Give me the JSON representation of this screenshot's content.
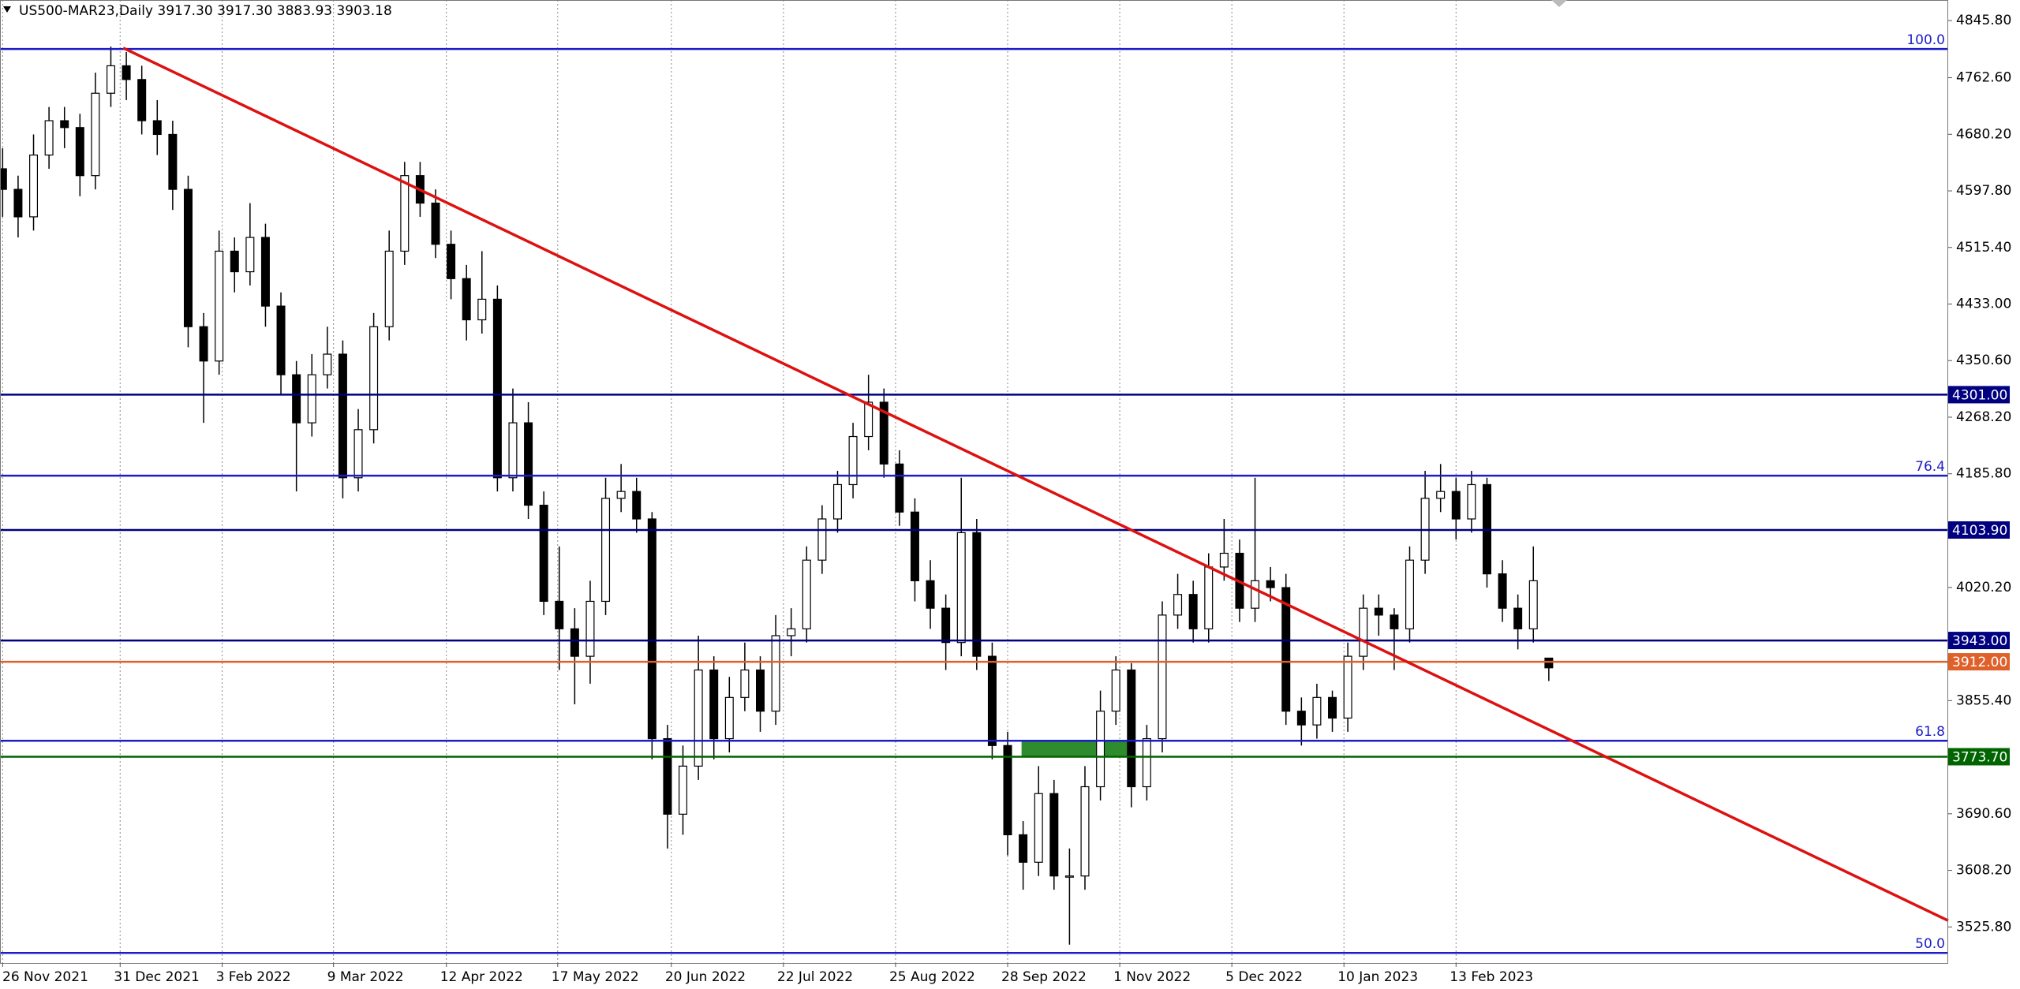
{
  "chart_data": {
    "type": "candlestick",
    "title": "US500-MAR23,Daily  3917.30 3917.30 3883.93 3903.18",
    "candles": [
      [
        4630,
        4660,
        4560,
        4600
      ],
      [
        4600,
        4620,
        4530,
        4560
      ],
      [
        4560,
        4680,
        4540,
        4650
      ],
      [
        4650,
        4720,
        4630,
        4700
      ],
      [
        4700,
        4720,
        4660,
        4690
      ],
      [
        4690,
        4710,
        4590,
        4620
      ],
      [
        4620,
        4770,
        4600,
        4740
      ],
      [
        4740,
        4808,
        4720,
        4780
      ],
      [
        4780,
        4800,
        4730,
        4760
      ],
      [
        4760,
        4780,
        4680,
        4700
      ],
      [
        4700,
        4730,
        4650,
        4680
      ],
      [
        4680,
        4700,
        4570,
        4600
      ],
      [
        4600,
        4620,
        4370,
        4400
      ],
      [
        4400,
        4420,
        4260,
        4350
      ],
      [
        4350,
        4540,
        4330,
        4510
      ],
      [
        4510,
        4530,
        4450,
        4480
      ],
      [
        4480,
        4580,
        4460,
        4530
      ],
      [
        4530,
        4550,
        4400,
        4430
      ],
      [
        4430,
        4450,
        4300,
        4330
      ],
      [
        4330,
        4350,
        4160,
        4260
      ],
      [
        4260,
        4360,
        4240,
        4330
      ],
      [
        4330,
        4400,
        4310,
        4360
      ],
      [
        4360,
        4380,
        4150,
        4180
      ],
      [
        4180,
        4280,
        4160,
        4250
      ],
      [
        4250,
        4420,
        4230,
        4400
      ],
      [
        4400,
        4540,
        4380,
        4510
      ],
      [
        4510,
        4640,
        4490,
        4620
      ],
      [
        4620,
        4640,
        4560,
        4580
      ],
      [
        4580,
        4600,
        4500,
        4520
      ],
      [
        4520,
        4540,
        4440,
        4470
      ],
      [
        4470,
        4490,
        4380,
        4410
      ],
      [
        4410,
        4510,
        4390,
        4440
      ],
      [
        4440,
        4460,
        4160,
        4180
      ],
      [
        4180,
        4310,
        4160,
        4260
      ],
      [
        4260,
        4290,
        4120,
        4140
      ],
      [
        4140,
        4160,
        3980,
        4000
      ],
      [
        4000,
        4080,
        3900,
        3960
      ],
      [
        3960,
        3990,
        3850,
        3920
      ],
      [
        3920,
        4030,
        3880,
        4000
      ],
      [
        4000,
        4180,
        3980,
        4150
      ],
      [
        4150,
        4200,
        4130,
        4160
      ],
      [
        4160,
        4180,
        4100,
        4120
      ],
      [
        4120,
        4130,
        3770,
        3800
      ],
      [
        3800,
        3820,
        3640,
        3690
      ],
      [
        3690,
        3790,
        3660,
        3760
      ],
      [
        3760,
        3950,
        3740,
        3900
      ],
      [
        3900,
        3920,
        3770,
        3800
      ],
      [
        3800,
        3890,
        3780,
        3860
      ],
      [
        3860,
        3940,
        3840,
        3900
      ],
      [
        3900,
        3920,
        3810,
        3840
      ],
      [
        3840,
        3980,
        3820,
        3950
      ],
      [
        3950,
        3990,
        3920,
        3960
      ],
      [
        3960,
        4080,
        3940,
        4060
      ],
      [
        4060,
        4140,
        4040,
        4120
      ],
      [
        4120,
        4190,
        4100,
        4170
      ],
      [
        4170,
        4260,
        4150,
        4240
      ],
      [
        4240,
        4330,
        4220,
        4290
      ],
      [
        4290,
        4310,
        4180,
        4200
      ],
      [
        4200,
        4220,
        4110,
        4130
      ],
      [
        4130,
        4150,
        4000,
        4030
      ],
      [
        4030,
        4060,
        3960,
        3990
      ],
      [
        3990,
        4010,
        3900,
        3940
      ],
      [
        3940,
        4180,
        3920,
        4100
      ],
      [
        4100,
        4120,
        3900,
        3920
      ],
      [
        3920,
        3940,
        3770,
        3790
      ],
      [
        3790,
        3810,
        3630,
        3660
      ],
      [
        3660,
        3680,
        3580,
        3620
      ],
      [
        3620,
        3760,
        3600,
        3720
      ],
      [
        3720,
        3740,
        3580,
        3600
      ],
      [
        3600,
        3640,
        3500,
        3600
      ],
      [
        3600,
        3760,
        3580,
        3730
      ],
      [
        3730,
        3870,
        3710,
        3840
      ],
      [
        3840,
        3920,
        3820,
        3900
      ],
      [
        3900,
        3910,
        3700,
        3730
      ],
      [
        3730,
        3820,
        3710,
        3800
      ],
      [
        3800,
        4000,
        3780,
        3980
      ],
      [
        3980,
        4040,
        3960,
        4010
      ],
      [
        4010,
        4030,
        3940,
        3960
      ],
      [
        3960,
        4070,
        3940,
        4050
      ],
      [
        4050,
        4120,
        4030,
        4070
      ],
      [
        4070,
        4090,
        3970,
        3990
      ],
      [
        3990,
        4180,
        3970,
        4030
      ],
      [
        4030,
        4050,
        4000,
        4020
      ],
      [
        4020,
        4040,
        3820,
        3840
      ],
      [
        3840,
        3860,
        3790,
        3820
      ],
      [
        3820,
        3880,
        3800,
        3860
      ],
      [
        3860,
        3870,
        3810,
        3830
      ],
      [
        3830,
        3940,
        3810,
        3920
      ],
      [
        3920,
        4010,
        3900,
        3990
      ],
      [
        3990,
        4010,
        3950,
        3980
      ],
      [
        3980,
        3990,
        3900,
        3960
      ],
      [
        3960,
        4080,
        3940,
        4060
      ],
      [
        4060,
        4190,
        4040,
        4150
      ],
      [
        4150,
        4200,
        4130,
        4160
      ],
      [
        4160,
        4180,
        4090,
        4120
      ],
      [
        4120,
        4190,
        4100,
        4170
      ],
      [
        4170,
        4180,
        4020,
        4040
      ],
      [
        4040,
        4060,
        3970,
        3990
      ],
      [
        3990,
        4010,
        3930,
        3960
      ],
      [
        3960,
        4080,
        3940,
        4030
      ],
      [
        3917.3,
        3917.3,
        3883.93,
        3903.18
      ]
    ],
    "xlim": [
      -0.17,
      125.83
    ],
    "xticks": [
      {
        "value": 0,
        "label": "26 Nov 2021"
      },
      {
        "value": 7.6,
        "label": "31 Dec 2021"
      },
      {
        "value": 14.2,
        "label": "3 Feb 2022"
      },
      {
        "value": 21.4,
        "label": "9 Mar 2022"
      },
      {
        "value": 28.7,
        "label": "12 Apr 2022"
      },
      {
        "value": 35.9,
        "label": "17 May 2022"
      },
      {
        "value": 43.25,
        "label": "20 Jun 2022"
      },
      {
        "value": 50.5,
        "label": "22 Jul 2022"
      },
      {
        "value": 57.75,
        "label": "25 Aug 2022"
      },
      {
        "value": 65,
        "label": "28 Sep 2022"
      },
      {
        "value": 72.25,
        "label": "1 Nov 2022"
      },
      {
        "value": 79.5,
        "label": "5 Dec 2022"
      },
      {
        "value": 86.75,
        "label": "10 Jan 2023"
      },
      {
        "value": 94,
        "label": "13 Feb 2023"
      }
    ],
    "ylim": [
      3473.3,
      4875.8
    ],
    "yticks": [
      {
        "value": 4845.8,
        "label": "4845.80"
      },
      {
        "value": 4762.6,
        "label": "4762.60"
      },
      {
        "value": 4680.2,
        "label": "4680.20"
      },
      {
        "value": 4597.8,
        "label": "4597.80"
      },
      {
        "value": 4515.4,
        "label": "4515.40"
      },
      {
        "value": 4433,
        "label": "4433.00"
      },
      {
        "value": 4350.6,
        "label": "4350.60"
      },
      {
        "value": 4268.2,
        "label": "4268.20"
      },
      {
        "value": 4185.8,
        "label": "4185.80"
      },
      {
        "value": 4020.2,
        "label": "4020.20"
      },
      {
        "value": 3855.4,
        "label": "3855.40"
      },
      {
        "value": 3690.6,
        "label": "3690.60"
      },
      {
        "value": 3608.2,
        "label": "3608.20"
      },
      {
        "value": 3525.8,
        "label": "3525.80"
      }
    ],
    "levels": [
      {
        "value": 4804.5,
        "label": "100.0",
        "style": "fib",
        "color": "#1c1cc8"
      },
      {
        "value": 4301,
        "label": "4301.00",
        "style": "box",
        "color": "#000080"
      },
      {
        "value": 4183,
        "label": "76.4",
        "style": "fib",
        "color": "#1c1cc8"
      },
      {
        "value": 4103.9,
        "label": "4103.90",
        "style": "box",
        "color": "#000080"
      },
      {
        "value": 3943,
        "label": "3943.00",
        "style": "box",
        "color": "#000080"
      },
      {
        "value": 3912,
        "label": "3912.00",
        "style": "box",
        "color": "#e0602a"
      },
      {
        "value": 3797,
        "label": "61.8",
        "style": "fib",
        "color": "#1c1cc8"
      },
      {
        "value": 3773.7,
        "label": "3773.70",
        "style": "box",
        "color": "#006400"
      },
      {
        "value": 3488,
        "label": "50.0",
        "style": "fib",
        "color": "#1c1cc8"
      }
    ],
    "trendline": {
      "x": [
        7.8,
        125.83
      ],
      "y": [
        4806,
        3535
      ],
      "color": "#dd1111"
    },
    "zone": {
      "x": [
        65.9,
        72.9
      ],
      "y": [
        3773.7,
        3797
      ],
      "color": "#2e8b2e"
    },
    "bull_color": "#ffffff",
    "bear_color": "#000000",
    "grid": true
  }
}
